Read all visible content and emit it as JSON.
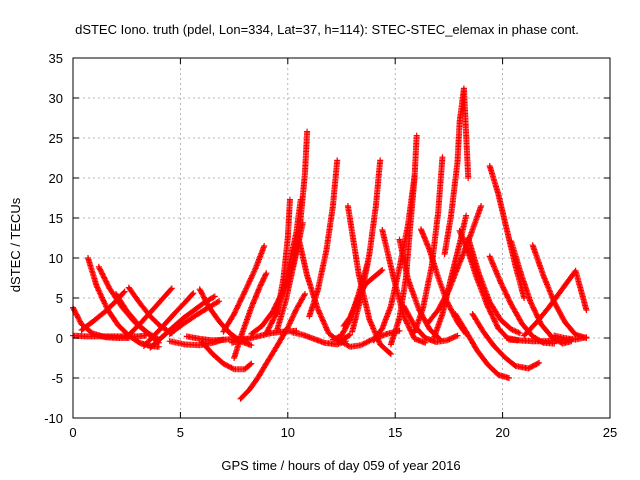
{
  "chart_data": {
    "type": "scatter",
    "title": "dSTEC Iono. truth (pdel, Lon=334, Lat=37, h=114): STEC-STEC_elemax in phase cont.",
    "xlabel": "GPS time / hours of day 059 of year 2016",
    "ylabel": "dSTEC  / TECUs",
    "xlim": [
      0,
      25
    ],
    "ylim": [
      -10,
      35
    ],
    "xticks": [
      0,
      5,
      10,
      15,
      20,
      25
    ],
    "yticks": [
      -10,
      -5,
      0,
      5,
      10,
      15,
      20,
      25,
      30,
      35
    ],
    "xtick_labels": [
      "0",
      "5",
      "10",
      "15",
      "20",
      "25"
    ],
    "ytick_labels": [
      "-10",
      "-5",
      "0",
      "5",
      "10",
      "15",
      "20",
      "25",
      "30",
      "35"
    ],
    "grid": true,
    "legend": "none",
    "marker": "+",
    "color": "#ff0000",
    "series": [
      {
        "x": [
          0.0,
          0.4,
          0.9,
          1.5,
          2.1,
          2.6
        ],
        "y": [
          3.8,
          1.7,
          0.6,
          0.1,
          0.0,
          0.0
        ]
      },
      {
        "x": [
          0.0,
          0.6,
          1.2,
          1.8,
          2.4,
          3.0,
          3.4
        ],
        "y": [
          0.3,
          0.2,
          0.2,
          0.2,
          0.2,
          0.2,
          0.3
        ]
      },
      {
        "x": [
          0.7,
          1.1,
          1.6,
          2.1,
          2.6,
          3.1,
          3.6,
          4.0
        ],
        "y": [
          10.0,
          6.5,
          3.6,
          1.6,
          0.3,
          -0.6,
          -1.0,
          -1.1
        ]
      },
      {
        "x": [
          1.2,
          1.7,
          2.3,
          2.9,
          3.5,
          4.0
        ],
        "y": [
          8.9,
          6.2,
          3.8,
          1.9,
          0.6,
          -0.2
        ]
      },
      {
        "x": [
          0.4,
          0.9,
          1.5,
          2.0,
          2.4
        ],
        "y": [
          1.0,
          2.0,
          3.3,
          4.6,
          5.8
        ]
      },
      {
        "x": [
          2.0,
          2.5,
          3.1,
          3.6,
          4.0
        ],
        "y": [
          5.5,
          3.4,
          1.5,
          0.3,
          -0.6
        ]
      },
      {
        "x": [
          2.6,
          3.1,
          3.6,
          4.1,
          4.6
        ],
        "y": [
          6.3,
          4.4,
          2.7,
          1.4,
          0.6
        ]
      },
      {
        "x": [
          3.3,
          3.7,
          4.2,
          4.7,
          5.2,
          5.6
        ],
        "y": [
          -1.0,
          0.1,
          1.5,
          3.0,
          4.4,
          5.6
        ]
      },
      {
        "x": [
          3.6,
          4.1,
          4.6,
          5.1,
          5.6,
          6.1,
          6.6
        ],
        "y": [
          -1.2,
          0.0,
          1.2,
          2.4,
          3.4,
          4.4,
          5.2
        ]
      },
      {
        "x": [
          2.5,
          3.2,
          3.9,
          4.6
        ],
        "y": [
          0.1,
          2.0,
          4.1,
          6.2
        ]
      },
      {
        "x": [
          4.5,
          5.1,
          5.7,
          6.3,
          6.8
        ],
        "y": [
          0.5,
          1.7,
          2.8,
          3.8,
          4.6
        ]
      },
      {
        "x": [
          5.9,
          6.3,
          6.8,
          7.3,
          7.8,
          8.3
        ],
        "y": [
          6.1,
          4.0,
          2.1,
          0.6,
          -0.4,
          -0.9
        ]
      },
      {
        "x": [
          5.3,
          5.9,
          6.5,
          7.1,
          7.7,
          8.2
        ],
        "y": [
          0.2,
          -0.1,
          -0.3,
          -0.2,
          -0.1,
          -0.1
        ]
      },
      {
        "x": [
          4.5,
          5.2,
          5.9,
          6.5,
          7.0
        ],
        "y": [
          -0.4,
          -0.8,
          -0.9,
          -0.6,
          -0.2
        ]
      },
      {
        "x": [
          6.0,
          6.5,
          7.0,
          7.5,
          8.0,
          8.3
        ],
        "y": [
          -0.5,
          -2.0,
          -3.2,
          -3.9,
          -3.9,
          -3.2
        ]
      },
      {
        "x": [
          7.5,
          7.9,
          8.3,
          8.7,
          9.0
        ],
        "y": [
          -2.5,
          0.8,
          3.8,
          6.4,
          8.1
        ]
      },
      {
        "x": [
          7.8,
          8.2,
          8.6,
          9.0,
          9.5,
          10.0,
          10.4,
          10.8
        ],
        "y": [
          -7.6,
          -6.5,
          -5.0,
          -3.2,
          -1.0,
          1.3,
          3.6,
          5.5
        ]
      },
      {
        "x": [
          7.0,
          7.5,
          8.0,
          8.5,
          8.9
        ],
        "y": [
          0.8,
          3.0,
          5.8,
          8.7,
          11.5
        ]
      },
      {
        "x": [
          7.4,
          8.0,
          8.6,
          9.2,
          9.8,
          10.4
        ],
        "y": [
          -0.6,
          -0.2,
          0.2,
          0.6,
          0.8,
          0.9
        ]
      },
      {
        "x": [
          8.3,
          8.8,
          9.3,
          9.8,
          10.3,
          10.7
        ],
        "y": [
          0.5,
          1.5,
          3.3,
          6.0,
          9.5,
          14.4
        ]
      },
      {
        "x": [
          9.0,
          9.4,
          9.8,
          10.1,
          10.4,
          10.6
        ],
        "y": [
          0.6,
          2.7,
          6.0,
          9.6,
          13.2,
          17.3
        ]
      },
      {
        "x": [
          9.5,
          9.8,
          10.0,
          10.1
        ],
        "y": [
          3.0,
          7.5,
          12.5,
          17.3
        ]
      },
      {
        "x": [
          9.5,
          9.9,
          10.3,
          10.6,
          10.8,
          10.9
        ],
        "y": [
          1.0,
          4.6,
          9.5,
          15.0,
          20.6,
          25.8
        ]
      },
      {
        "x": [
          10.5,
          10.9,
          11.4,
          11.9,
          12.4,
          12.9
        ],
        "y": [
          12.5,
          7.8,
          3.6,
          0.6,
          -0.5,
          0.4
        ]
      },
      {
        "x": [
          10.2,
          10.7,
          11.2,
          11.7,
          12.3,
          12.7
        ],
        "y": [
          0.7,
          0.4,
          -0.1,
          -0.6,
          -0.8,
          -0.4
        ]
      },
      {
        "x": [
          11.0,
          11.4,
          11.8,
          12.1,
          12.3
        ],
        "y": [
          2.7,
          6.0,
          11.0,
          16.5,
          22.2
        ]
      },
      {
        "x": [
          12.1,
          12.5,
          12.9,
          13.3,
          13.7
        ],
        "y": [
          -0.2,
          0.3,
          2.3,
          5.5,
          9.2
        ]
      },
      {
        "x": [
          12.6,
          12.9,
          13.2,
          13.6,
          14.0,
          14.4
        ],
        "y": [
          1.5,
          2.6,
          4.5,
          6.7,
          7.6,
          8.5
        ]
      },
      {
        "x": [
          12.8,
          13.3,
          13.8,
          14.3,
          14.8
        ],
        "y": [
          16.5,
          8.0,
          2.3,
          -0.8,
          -2.0
        ]
      },
      {
        "x": [
          12.4,
          12.9,
          13.4,
          14.0,
          14.6,
          15.2
        ],
        "y": [
          -0.3,
          -1.1,
          -0.9,
          -0.1,
          0.5,
          0.9
        ]
      },
      {
        "x": [
          13.0,
          13.4,
          13.8,
          14.1,
          14.3
        ],
        "y": [
          0.8,
          5.0,
          10.5,
          16.5,
          22.2
        ]
      },
      {
        "x": [
          14.4,
          14.9,
          15.4,
          15.9,
          16.4
        ],
        "y": [
          13.5,
          7.8,
          2.7,
          -0.1,
          -0.6
        ]
      },
      {
        "x": [
          14.8,
          15.2,
          15.5,
          15.7,
          15.9,
          16.0
        ],
        "y": [
          -0.8,
          2.5,
          7.5,
          14.0,
          20.0,
          25.3
        ]
      },
      {
        "x": [
          14.0,
          14.4,
          14.8,
          15.2,
          15.6,
          15.9
        ],
        "y": [
          -0.3,
          1.2,
          4.0,
          8.8,
          14.2,
          20.2
        ]
      },
      {
        "x": [
          15.2,
          15.6,
          16.1,
          16.6,
          17.1
        ],
        "y": [
          12.3,
          7.3,
          3.6,
          1.1,
          -0.2
        ]
      },
      {
        "x": [
          15.4,
          15.9,
          16.4,
          16.9,
          17.4,
          17.9
        ],
        "y": [
          4.0,
          1.5,
          0.0,
          -0.5,
          -0.3,
          0.3
        ]
      },
      {
        "x": [
          15.9,
          16.3,
          16.7,
          17.0,
          17.2
        ],
        "y": [
          0.7,
          3.8,
          9.0,
          15.7,
          22.6
        ]
      },
      {
        "x": [
          16.2,
          16.6,
          17.0,
          17.4,
          17.9,
          18.3
        ],
        "y": [
          13.6,
          11.0,
          7.6,
          4.6,
          2.0,
          0.5
        ]
      },
      {
        "x": [
          16.5,
          17.0,
          17.5,
          18.0,
          18.5,
          19.0
        ],
        "y": [
          1.8,
          3.5,
          6.0,
          9.4,
          12.8,
          16.5
        ]
      },
      {
        "x": [
          16.8,
          17.2,
          17.6,
          18.0,
          18.3
        ],
        "y": [
          0.0,
          3.0,
          7.5,
          11.8,
          15.3
        ]
      },
      {
        "x": [
          17.3,
          17.6,
          17.9,
          18.0,
          18.2,
          18.4
        ],
        "y": [
          10.5,
          15.3,
          22.0,
          27.0,
          31.2,
          20.0
        ]
      },
      {
        "x": [
          18.0,
          18.4,
          18.8,
          19.3,
          19.8,
          20.3,
          20.7
        ],
        "y": [
          13.4,
          10.7,
          7.5,
          4.0,
          1.2,
          -0.2,
          -0.3
        ]
      },
      {
        "x": [
          18.4,
          18.9,
          19.4,
          19.9,
          20.4,
          20.8
        ],
        "y": [
          12.5,
          8.0,
          4.5,
          2.3,
          1.1,
          0.6
        ]
      },
      {
        "x": [
          17.8,
          18.3,
          18.8,
          19.3,
          19.8,
          20.3
        ],
        "y": [
          3.0,
          0.8,
          -1.5,
          -3.3,
          -4.6,
          -5.0
        ]
      },
      {
        "x": [
          18.6,
          19.1,
          19.6,
          20.1,
          20.6,
          21.2,
          21.7
        ],
        "y": [
          3.0,
          0.8,
          -1.0,
          -2.4,
          -3.5,
          -3.8,
          -3.1
        ]
      },
      {
        "x": [
          19.4,
          19.8,
          20.2,
          20.6,
          21.0
        ],
        "y": [
          21.5,
          18.0,
          13.5,
          9.0,
          5.0
        ]
      },
      {
        "x": [
          19.4,
          19.9,
          20.4,
          20.9,
          21.4,
          21.9,
          22.4
        ],
        "y": [
          10.2,
          7.0,
          4.2,
          1.8,
          0.2,
          -0.6,
          -0.7
        ]
      },
      {
        "x": [
          20.4,
          20.8,
          21.3,
          21.8,
          22.3,
          22.8,
          23.2
        ],
        "y": [
          12.1,
          8.5,
          4.5,
          1.7,
          0.1,
          -0.7,
          -0.4
        ]
      },
      {
        "x": [
          21.4,
          21.9,
          22.4,
          22.9,
          23.4,
          23.9
        ],
        "y": [
          11.6,
          7.8,
          4.5,
          2.0,
          0.4,
          0.0
        ]
      },
      {
        "x": [
          20.2,
          20.8,
          21.4,
          22.0,
          22.6,
          23.2
        ],
        "y": [
          0.0,
          -0.3,
          -0.4,
          -0.4,
          -0.3,
          -0.2
        ]
      },
      {
        "x": [
          21.0,
          21.6,
          22.2,
          22.8,
          23.4,
          23.9
        ],
        "y": [
          0.3,
          2.0,
          4.0,
          6.2,
          8.4,
          3.5
        ]
      },
      {
        "x": [
          22.4,
          22.9,
          23.4,
          23.9
        ],
        "y": [
          0.3,
          0.0,
          -0.2,
          0.1
        ]
      }
    ]
  }
}
